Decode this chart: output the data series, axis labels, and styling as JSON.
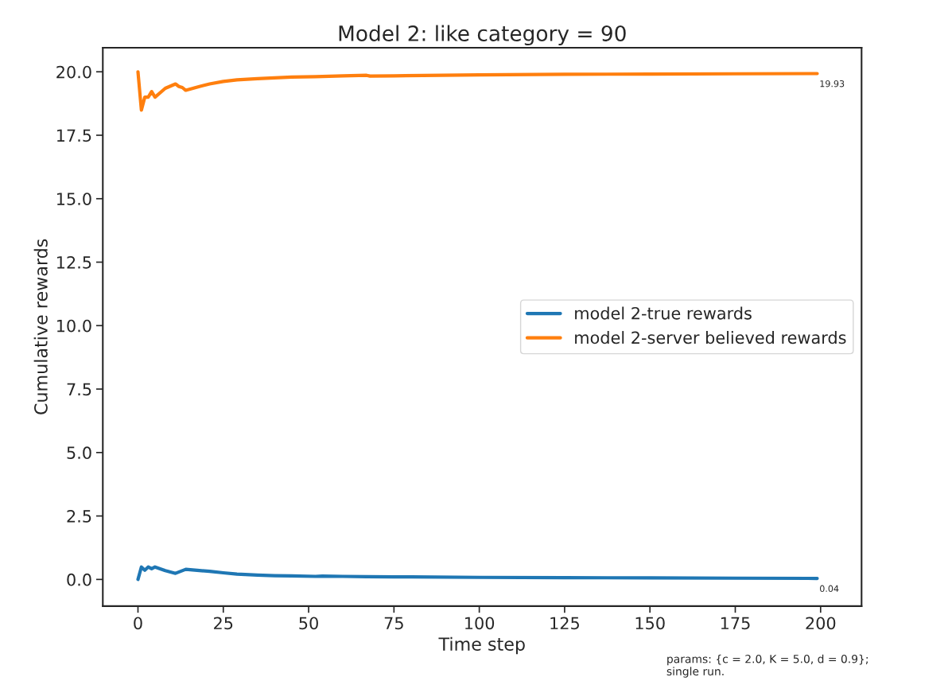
{
  "chart_data": {
    "type": "line",
    "title": "Model 2: like category = 90",
    "xlabel": "Time step",
    "ylabel": "Cumulative rewards",
    "series": [
      {
        "name": "model 2-true rewards",
        "color": "#1f77b4",
        "x": [
          0,
          1,
          2,
          3,
          4,
          5,
          8,
          11,
          14,
          18,
          21,
          25,
          29,
          35,
          40,
          45,
          52,
          54,
          60,
          67,
          75,
          80,
          100,
          125,
          150,
          175,
          199
        ],
        "values": [
          0.0,
          0.49,
          0.36,
          0.49,
          0.42,
          0.49,
          0.35,
          0.24,
          0.4,
          0.35,
          0.32,
          0.26,
          0.21,
          0.17,
          0.15,
          0.14,
          0.12,
          0.13,
          0.12,
          0.11,
          0.1,
          0.1,
          0.08,
          0.07,
          0.06,
          0.05,
          0.04
        ]
      },
      {
        "name": "model 2-server believed rewards",
        "color": "#ff7f0e",
        "x": [
          0,
          1,
          2,
          3,
          4,
          5,
          8,
          11,
          12,
          13,
          14,
          18,
          21,
          25,
          29,
          35,
          40,
          45,
          52,
          60,
          67,
          68,
          75,
          100,
          125,
          150,
          175,
          199
        ],
        "values": [
          20.0,
          18.49,
          19.0,
          19.0,
          19.22,
          19.0,
          19.35,
          19.52,
          19.42,
          19.38,
          19.27,
          19.42,
          19.52,
          19.62,
          19.68,
          19.73,
          19.76,
          19.79,
          19.81,
          19.84,
          19.86,
          19.83,
          19.84,
          19.88,
          19.9,
          19.91,
          19.92,
          19.93
        ]
      }
    ],
    "xlim": [
      -10.3,
      212
    ],
    "ylim": [
      -1.05,
      20.95
    ],
    "xticks": [
      0,
      25,
      50,
      75,
      100,
      125,
      150,
      175,
      200
    ],
    "yticks": [
      {
        "value": 0,
        "label": "0.0"
      },
      {
        "value": 2.5,
        "label": "2.5"
      },
      {
        "value": 5,
        "label": "5.0"
      },
      {
        "value": 7.5,
        "label": "7.5"
      },
      {
        "value": 10,
        "label": "10.0"
      },
      {
        "value": 12.5,
        "label": "12.5"
      },
      {
        "value": 15,
        "label": "15.0"
      },
      {
        "value": 17.5,
        "label": "17.5"
      },
      {
        "value": 20,
        "label": "20.0"
      }
    ],
    "legend": "right",
    "grid": false,
    "marker": "none",
    "line_style": "solid",
    "annotations": [
      {
        "text": "19.93",
        "x": 199,
        "y": 19.93
      },
      {
        "text": "0.04",
        "x": 199,
        "y": 0.04
      },
      "params: {c = 2.0, K = 5.0, d = 0.9};\nsingle run."
    ]
  }
}
